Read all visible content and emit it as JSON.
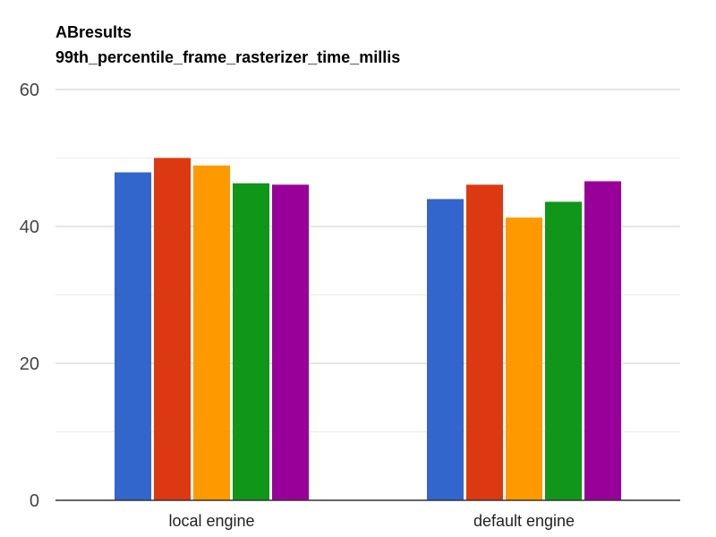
{
  "chart_data": {
    "type": "bar",
    "title": "ABresults",
    "subtitle": "99th_percentile_frame_rasterizer_time_millis",
    "xlabel": "",
    "ylabel": "",
    "ylim": [
      0,
      60
    ],
    "yticks": [
      0,
      20,
      40,
      60
    ],
    "minor_gridlines": [
      10,
      30,
      50
    ],
    "grid": true,
    "legend": "none",
    "categories": [
      "local engine",
      "default engine"
    ],
    "series": [
      {
        "color": "#3366cc",
        "values": [
          47.9,
          44.0
        ]
      },
      {
        "color": "#dc3912",
        "values": [
          50.0,
          46.1
        ]
      },
      {
        "color": "#ff9900",
        "values": [
          48.9,
          41.3
        ]
      },
      {
        "color": "#109618",
        "values": [
          46.3,
          43.6
        ]
      },
      {
        "color": "#990099",
        "values": [
          46.1,
          46.6
        ]
      }
    ]
  }
}
